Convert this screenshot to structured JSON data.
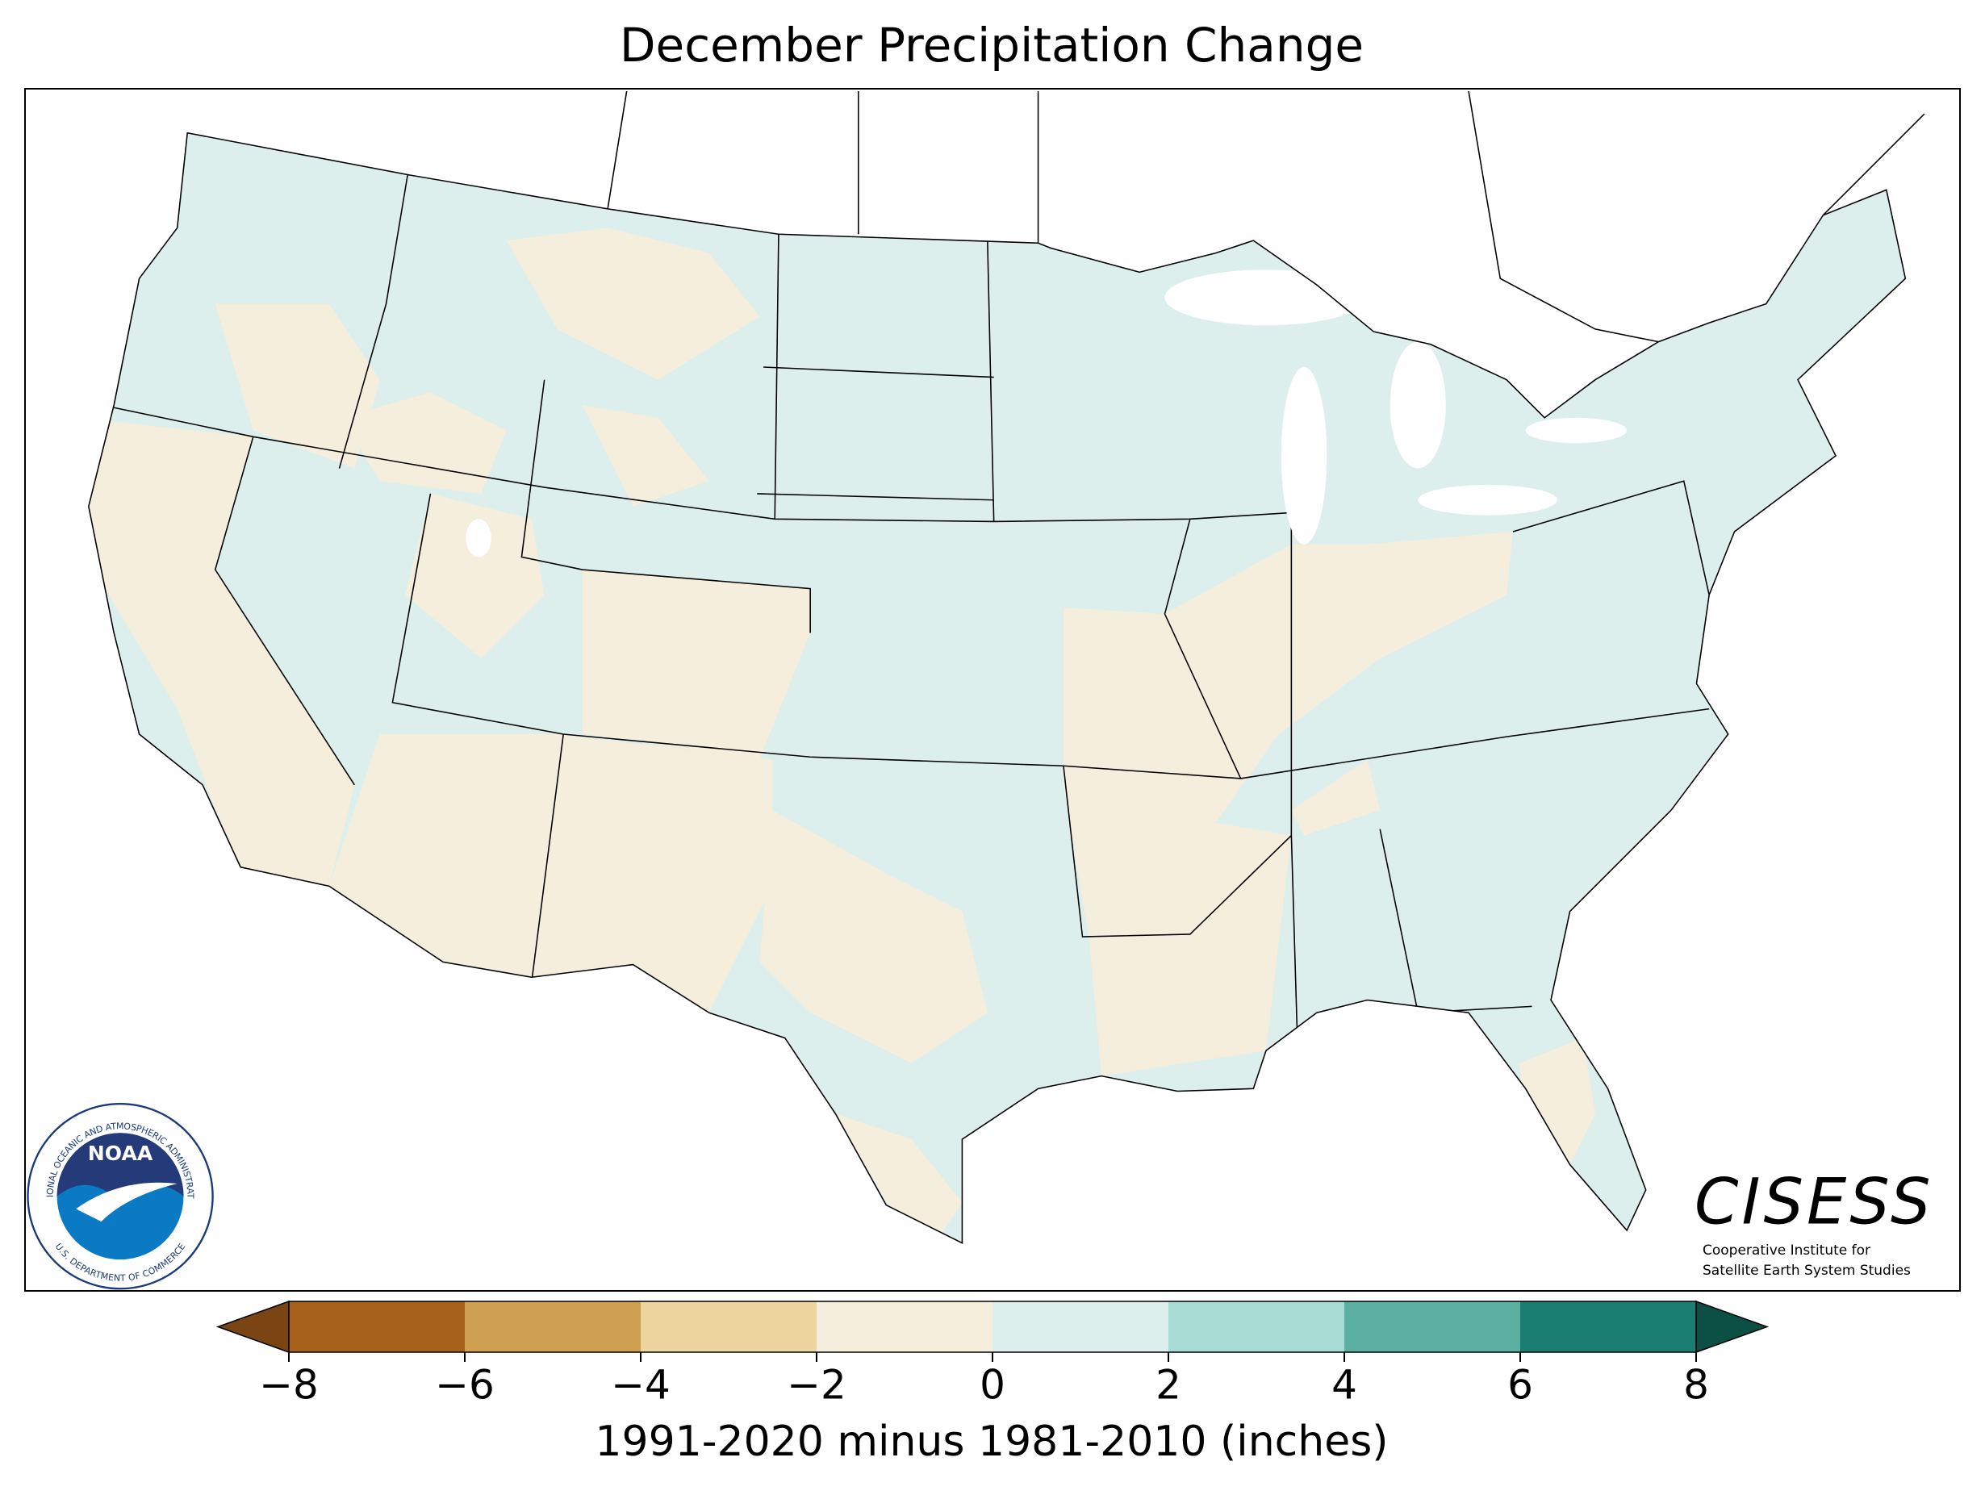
{
  "title": "December Precipitation Change",
  "colorbar": {
    "label": "1991-2020 minus 1981-2010 (inches)",
    "xlim": [
      -8,
      8
    ],
    "xticks": [
      {
        "value": -8,
        "label": "−8"
      },
      {
        "value": -6,
        "label": "−6"
      },
      {
        "value": -4,
        "label": "−4"
      },
      {
        "value": -2,
        "label": "−2"
      },
      0,
      2,
      4,
      6,
      8
    ],
    "colors": [
      "#a6611a",
      "#cf9f52",
      "#ecd59e",
      "#f6eedc",
      "#dcefec",
      "#a6dcd3",
      "#5bb0a2",
      "#1a7e70"
    ],
    "under_color": "#7a4512",
    "over_color": "#0b4f45"
  },
  "logos": {
    "noaa": {
      "name": "NOAA",
      "ring_top": "NATIONAL OCEANIC AND ATMOSPHERIC ADMINISTRATION",
      "ring_bottom": "U.S. DEPARTMENT OF COMMERCE"
    },
    "cisess": {
      "name": "CISESS",
      "line1": "Cooperative Institute for",
      "line2": "Satellite Earth System Studies"
    }
  }
}
